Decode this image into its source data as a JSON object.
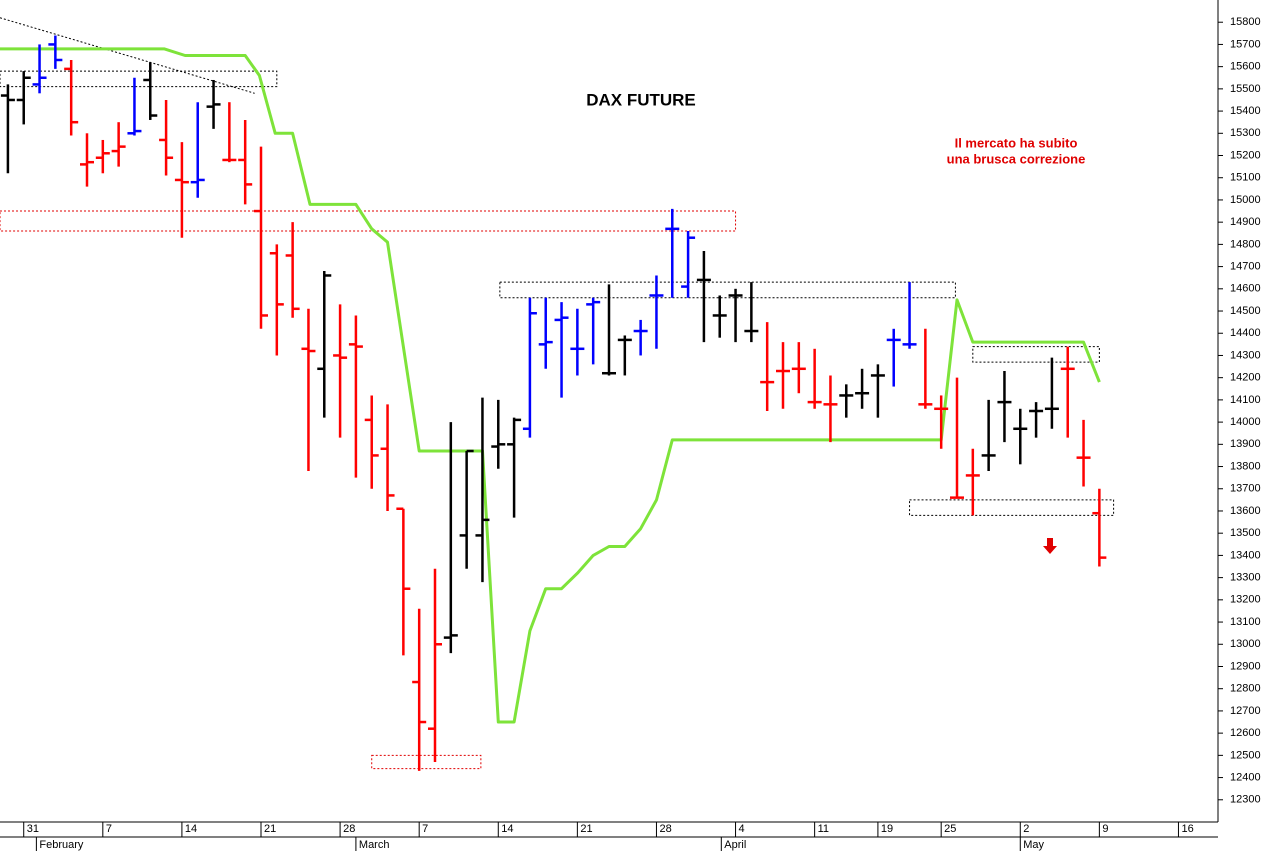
{
  "chart_data": {
    "type": "ohlc",
    "title": "DAX FUTURE",
    "annotations": [
      "Il mercato ha subito",
      "una brusca correzione"
    ],
    "annotation_color": "#e00000",
    "x": [
      0.5,
      1.5,
      2.5,
      3.5,
      4.5,
      5.5,
      6.5,
      7.5,
      8.5,
      9.5,
      10.5,
      11.5,
      12.5,
      13.5,
      14.5,
      15.5,
      16.5,
      17.5,
      18.5,
      19.5,
      20.5,
      21.5,
      22.5,
      23.5,
      24.5,
      25.5,
      26.5,
      27.5,
      28.5,
      29.5,
      30.5,
      31.5,
      32.5,
      33.5,
      34.5,
      35.5,
      36.5,
      37.5,
      38.5,
      39.5,
      40.5,
      41.5,
      42.5,
      43.5,
      44.5,
      45.5,
      46.5,
      47.5,
      48.5,
      49.5,
      50.5,
      51.5,
      52.5,
      53.5,
      54.5,
      55.5,
      56.5,
      57.5,
      58.5,
      59.5,
      60.5,
      61.5,
      62.5,
      63.5,
      64.5,
      65.5,
      66.5,
      67.5,
      68.5,
      69.5
    ],
    "open": [
      15470,
      15450,
      15520,
      15700,
      15590,
      15160,
      15190,
      15220,
      15300,
      15540,
      15270,
      15090,
      15080,
      15420,
      15180,
      15180,
      14950,
      14760,
      14750,
      14330,
      14240,
      14300,
      14350,
      14010,
      13880,
      13610,
      12830,
      12620,
      13030,
      13490,
      13490,
      13890,
      13900,
      13970,
      14350,
      14460,
      14330,
      14530,
      14220,
      14370,
      14410,
      14570,
      14870,
      14610,
      14640,
      14480,
      14570,
      14410,
      14180,
      14230,
      14240,
      14090,
      14080,
      14120,
      14130,
      14210,
      14370,
      14350,
      14080,
      14060,
      13660,
      13760,
      13850,
      14090,
      13970,
      14050,
      14060,
      14240,
      13840,
      13590
    ],
    "high": [
      15520,
      15580,
      15700,
      15740,
      15630,
      15300,
      15270,
      15350,
      15550,
      15620,
      15450,
      15260,
      15440,
      15540,
      15440,
      15360,
      15240,
      14800,
      14900,
      14510,
      14680,
      14530,
      14480,
      14120,
      14080,
      13610,
      13160,
      13340,
      14000,
      13870,
      14110,
      14100,
      14020,
      14560,
      14560,
      14540,
      14510,
      14560,
      14620,
      14390,
      14460,
      14660,
      14960,
      14860,
      14770,
      14570,
      14600,
      14630,
      14450,
      14360,
      14360,
      14330,
      14210,
      14170,
      14240,
      14260,
      14420,
      14630,
      14420,
      14120,
      14200,
      13880,
      14100,
      14230,
      14060,
      14090,
      14290,
      14340,
      14010,
      13700
    ],
    "low": [
      15120,
      15340,
      15480,
      15590,
      15290,
      15060,
      15120,
      15150,
      15290,
      15360,
      15110,
      14830,
      15010,
      15320,
      15170,
      14980,
      14420,
      14300,
      14470,
      13780,
      14020,
      13930,
      13750,
      13700,
      13600,
      12950,
      12430,
      12470,
      12960,
      13340,
      13280,
      13790,
      13570,
      13930,
      14240,
      14110,
      14210,
      14260,
      14210,
      14210,
      14300,
      14330,
      14560,
      14560,
      14360,
      14380,
      14360,
      14360,
      14050,
      14060,
      14130,
      14060,
      13910,
      14020,
      14060,
      14020,
      14160,
      14330,
      14060,
      13880,
      13660,
      13580,
      13780,
      13910,
      13810,
      13930,
      13970,
      13930,
      13710,
      13350
    ],
    "close": [
      15450,
      15550,
      15550,
      15630,
      15350,
      15170,
      15210,
      15240,
      15310,
      15380,
      15190,
      15080,
      15090,
      15430,
      15180,
      15070,
      14480,
      14530,
      14510,
      14320,
      14660,
      14290,
      14340,
      13850,
      13670,
      13250,
      12650,
      13000,
      13040,
      13870,
      13560,
      13900,
      14010,
      14490,
      14360,
      14470,
      14330,
      14540,
      14220,
      14370,
      14410,
      14570,
      14870,
      14830,
      14640,
      14480,
      14570,
      14410,
      14180,
      14230,
      14240,
      14090,
      14080,
      14120,
      14130,
      14210,
      14370,
      14350,
      14080,
      14060,
      13660,
      13760,
      13850,
      14090,
      13970,
      14050,
      14060,
      14240,
      13840,
      13390
    ],
    "colors": [
      "black",
      "black",
      "blue",
      "blue",
      "red",
      "red",
      "red",
      "red",
      "blue",
      "black",
      "red",
      "red",
      "blue",
      "black",
      "red",
      "red",
      "red",
      "red",
      "red",
      "red",
      "black",
      "red",
      "red",
      "red",
      "red",
      "red",
      "red",
      "red",
      "black",
      "black",
      "black",
      "black",
      "black",
      "blue",
      "blue",
      "blue",
      "blue",
      "blue",
      "black",
      "black",
      "blue",
      "blue",
      "blue",
      "blue",
      "black",
      "black",
      "black",
      "black",
      "red",
      "red",
      "red",
      "red",
      "red",
      "black",
      "black",
      "black",
      "blue",
      "blue",
      "red",
      "red",
      "red",
      "red",
      "black",
      "black",
      "black",
      "black",
      "black",
      "red",
      "red",
      "red"
    ],
    "stop_line": {
      "color": "#7ee33a",
      "x": [
        0,
        10.4,
        11.7,
        15.5,
        16.4,
        17.4,
        18.5,
        19.6,
        22.5,
        23.5,
        24.5,
        26.5,
        30.5,
        31.5,
        32.5,
        33.5,
        34.5,
        35.5,
        36.5,
        37.5,
        38.5,
        39.5,
        40.5,
        41.5,
        42.5,
        59.5,
        60.5,
        61.5,
        68.5,
        69.5
      ],
      "values": [
        15680,
        15680,
        15650,
        15650,
        15560,
        15300,
        15300,
        14980,
        14980,
        14870,
        14810,
        13870,
        13870,
        12650,
        12650,
        13060,
        13250,
        13250,
        13320,
        13400,
        13440,
        13440,
        13520,
        13650,
        13920,
        13920,
        14550,
        14360,
        14360,
        14180
      ]
    },
    "zones": [
      {
        "color": "#000000",
        "x": [
          0,
          17.5
        ],
        "y": [
          15510,
          15580
        ]
      },
      {
        "color": "#e00000",
        "x": [
          0,
          46.5
        ],
        "y": [
          14860,
          14950
        ]
      },
      {
        "color": "#e00000",
        "x": [
          23.5,
          30.4
        ],
        "y": [
          12440,
          12500
        ]
      },
      {
        "color": "#000000",
        "x": [
          31.6,
          60.4
        ],
        "y": [
          14560,
          14630
        ]
      },
      {
        "color": "#000000",
        "x": [
          61.5,
          69.5
        ],
        "y": [
          14270,
          14340
        ]
      },
      {
        "color": "#000000",
        "x": [
          57.5,
          70.4
        ],
        "y": [
          13580,
          13650
        ]
      }
    ],
    "trendline": {
      "color": "#000000",
      "x": [
        0,
        16.1
      ],
      "values": [
        15820,
        15480
      ]
    },
    "xlim": [
      0,
      77
    ],
    "ylim": [
      12200,
      15900
    ],
    "xticks": [
      {
        "value": 1.5,
        "label": "31"
      },
      {
        "value": 6.5,
        "label": "7"
      },
      {
        "value": 11.5,
        "label": "14"
      },
      {
        "value": 16.5,
        "label": "21"
      },
      {
        "value": 21.5,
        "label": "28"
      },
      {
        "value": 26.5,
        "label": "7"
      },
      {
        "value": 31.5,
        "label": "14"
      },
      {
        "value": 36.5,
        "label": "21"
      },
      {
        "value": 41.5,
        "label": "28"
      },
      {
        "value": 46.5,
        "label": "4"
      },
      {
        "value": 51.5,
        "label": "11"
      },
      {
        "value": 55.5,
        "label": "19"
      },
      {
        "value": 59.5,
        "label": "25"
      },
      {
        "value": 64.5,
        "label": "2"
      },
      {
        "value": 69.5,
        "label": "9"
      },
      {
        "value": 74.5,
        "label": "16"
      }
    ],
    "month_ticks": [
      {
        "value": 2.3,
        "label": "February"
      },
      {
        "value": 22.5,
        "label": "March"
      },
      {
        "value": 45.6,
        "label": "April"
      },
      {
        "value": 64.5,
        "label": "May"
      }
    ],
    "yticks": [
      12300,
      12400,
      12500,
      12600,
      12700,
      12800,
      12900,
      13000,
      13100,
      13200,
      13300,
      13400,
      13500,
      13600,
      13700,
      13800,
      13900,
      14000,
      14100,
      14200,
      14300,
      14400,
      14500,
      14600,
      14700,
      14800,
      14900,
      15000,
      15100,
      15200,
      15300,
      15400,
      15500,
      15600,
      15700,
      15800
    ]
  }
}
